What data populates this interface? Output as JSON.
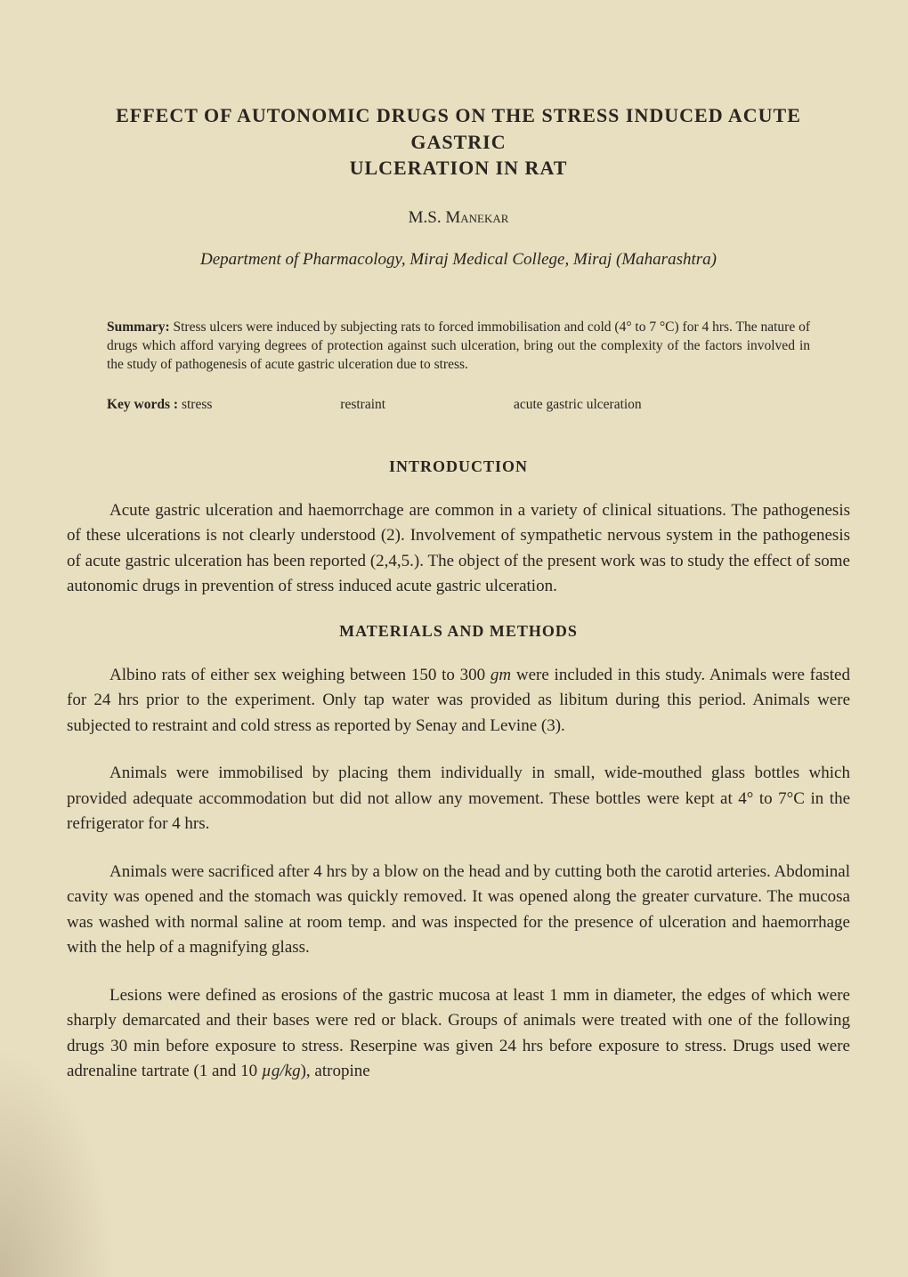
{
  "title_line1": "EFFECT OF AUTONOMIC DRUGS ON THE STRESS INDUCED ACUTE GASTRIC",
  "title_line2": "ULCERATION IN RAT",
  "author_initials": "M.S.",
  "author_surname": "Manekar",
  "affiliation_dept": "Department of Pharmacology",
  "affiliation_inst": "Miraj Medical College",
  "affiliation_city": "Miraj",
  "affiliation_state": "Maharashtra",
  "summary_label": "Summary:",
  "summary_text": "Stress ulcers were induced by subjecting rats to forced immobilisation and cold (4° to 7 °C) for 4 hrs. The nature of drugs which afford varying degrees of protection against such ulceration, bring out the complexity of the factors involved in the study of pathogenesis of acute gastric ulceration due to stress.",
  "keywords_label": "Key words :",
  "keywords": {
    "kw1": "stress",
    "kw2": "restraint",
    "kw3": "acute gastric ulceration"
  },
  "sections": {
    "intro_heading": "INTRODUCTION",
    "intro_para": "Acute gastric ulceration and haemorrchage are common in a variety of clinical situations. The pathogenesis of these ulcerations is not clearly understood (2). Involvement of sympathetic nervous system in the pathogenesis of acute gastric ulceration has been reported (2,4,5.). The object of the present work was to study the effect of some autonomic drugs in prevention of stress induced acute gastric ulceration.",
    "methods_heading": "MATERIALS AND METHODS",
    "methods_para1_a": "Albino rats of either sex weighing between 150 to 300 ",
    "methods_para1_gm": "gm",
    "methods_para1_b": " were included in this study. Animals were fasted for 24 hrs prior to the experiment.   Only tap water was provided as libitum during this period.  Animals were subjected to restraint and cold stress as reported by Senay and Levine (3).",
    "methods_para2": "Animals were immobilised by placing them individually in small, wide-mouthed glass bottles which provided adequate accommodation but did not allow any movement.   These bottles were kept at 4° to 7°C in the refrigerator for 4 hrs.",
    "methods_para3": "Animals were sacrificed after 4 hrs by a blow on the head and by cutting both the carotid arteries.  Abdominal cavity was opened and the stomach was quickly removed. It was opened along the greater curvature.  The mucosa was washed with normal saline at room temp.   and was inspected for the presence of ulceration and haemorrhage with the help of a magnifying glass.",
    "methods_para4_a": "Lesions were defined as erosions of the gastric mucosa at least 1 mm in diameter, the edges of which were sharply demarcated and their bases were red or black.   Groups of animals were treated with one of the following drugs 30 min before exposure to stress.   Reserpine was given 24 hrs before exposure to stress.    Drugs used were adrenaline tartrate (1 and 10 ",
    "methods_para4_unit": "µg/kg",
    "methods_para4_b": "), atropine"
  },
  "colors": {
    "background": "#e8dfc0",
    "text": "#2a2520"
  },
  "typography": {
    "title_fontsize": 22,
    "author_fontsize": 19,
    "affiliation_fontsize": 19,
    "summary_fontsize": 15.5,
    "heading_fontsize": 18,
    "body_fontsize": 19
  }
}
